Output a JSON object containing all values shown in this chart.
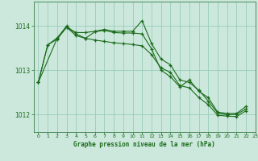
{
  "bg_color": "#cce8dc",
  "grid_color": "#99ccbb",
  "line_color": "#1a6b1a",
  "marker_color": "#1a6b1a",
  "text_color": "#1a6b1a",
  "title": "Graphe pression niveau de la mer (hPa)",
  "xlim": [
    -0.5,
    23
  ],
  "ylim": [
    1011.6,
    1014.55
  ],
  "yticks": [
    1012,
    1013,
    1014
  ],
  "xticks": [
    0,
    1,
    2,
    3,
    4,
    5,
    6,
    7,
    8,
    9,
    10,
    11,
    12,
    13,
    14,
    15,
    16,
    17,
    18,
    19,
    20,
    21,
    22,
    23
  ],
  "series": [
    {
      "x": [
        0,
        1,
        2,
        3,
        4,
        5,
        6,
        7,
        8,
        9,
        10,
        11,
        12,
        13,
        14,
        15,
        16,
        17,
        18,
        19,
        20,
        21,
        22
      ],
      "y": [
        1012.72,
        1013.57,
        1013.73,
        1013.97,
        1013.85,
        1013.85,
        1013.88,
        1013.92,
        1013.88,
        1013.88,
        1013.88,
        1014.12,
        1013.6,
        1013.25,
        1013.12,
        1012.78,
        1012.72,
        1012.55,
        1012.3,
        1012.03,
        1011.99,
        1012.0,
        1012.12
      ]
    },
    {
      "x": [
        0,
        1,
        2,
        3,
        4,
        5,
        6,
        7,
        8,
        9,
        10,
        11,
        12,
        13,
        14,
        15,
        16,
        17,
        18,
        19,
        20,
        21,
        22
      ],
      "y": [
        1012.72,
        1013.57,
        1013.7,
        1013.97,
        1013.78,
        1013.72,
        1013.68,
        1013.65,
        1013.62,
        1013.6,
        1013.58,
        1013.55,
        1013.35,
        1013.05,
        1012.95,
        1012.65,
        1012.6,
        1012.38,
        1012.22,
        1011.98,
        1011.96,
        1011.95,
        1012.08
      ]
    },
    {
      "x": [
        0,
        2,
        3,
        4,
        5,
        6,
        7,
        8,
        9,
        10,
        11,
        12,
        13,
        14,
        15,
        16,
        17,
        18,
        19,
        20,
        21,
        22
      ],
      "y": [
        1012.72,
        1013.72,
        1014.0,
        1013.82,
        1013.72,
        1013.87,
        1013.9,
        1013.85,
        1013.84,
        1013.84,
        1013.82,
        1013.48,
        1013.0,
        1012.85,
        1012.62,
        1012.78,
        1012.52,
        1012.38,
        1012.05,
        1012.02,
        1012.02,
        1012.18
      ]
    }
  ]
}
